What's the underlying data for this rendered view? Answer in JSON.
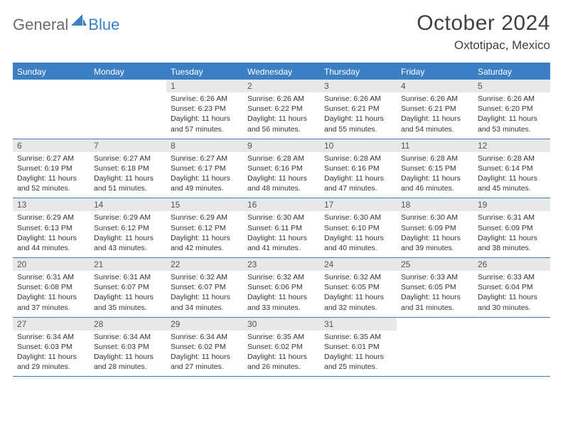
{
  "logo": {
    "general": "General",
    "blue": "Blue"
  },
  "title": {
    "month": "October 2024",
    "location": "Oxtotipac, Mexico"
  },
  "colors": {
    "primary": "#3b7fc4",
    "header_bg": "#3b7fc4",
    "num_bg": "#e8e8e8",
    "text": "#333333"
  },
  "day_names": [
    "Sunday",
    "Monday",
    "Tuesday",
    "Wednesday",
    "Thursday",
    "Friday",
    "Saturday"
  ],
  "weeks": [
    [
      {
        "empty": true
      },
      {
        "empty": true
      },
      {
        "n": "1",
        "sr": "6:26 AM",
        "ss": "6:23 PM",
        "dl": "11 hours and 57 minutes."
      },
      {
        "n": "2",
        "sr": "6:26 AM",
        "ss": "6:22 PM",
        "dl": "11 hours and 56 minutes."
      },
      {
        "n": "3",
        "sr": "6:26 AM",
        "ss": "6:21 PM",
        "dl": "11 hours and 55 minutes."
      },
      {
        "n": "4",
        "sr": "6:26 AM",
        "ss": "6:21 PM",
        "dl": "11 hours and 54 minutes."
      },
      {
        "n": "5",
        "sr": "6:26 AM",
        "ss": "6:20 PM",
        "dl": "11 hours and 53 minutes."
      }
    ],
    [
      {
        "n": "6",
        "sr": "6:27 AM",
        "ss": "6:19 PM",
        "dl": "11 hours and 52 minutes."
      },
      {
        "n": "7",
        "sr": "6:27 AM",
        "ss": "6:18 PM",
        "dl": "11 hours and 51 minutes."
      },
      {
        "n": "8",
        "sr": "6:27 AM",
        "ss": "6:17 PM",
        "dl": "11 hours and 49 minutes."
      },
      {
        "n": "9",
        "sr": "6:28 AM",
        "ss": "6:16 PM",
        "dl": "11 hours and 48 minutes."
      },
      {
        "n": "10",
        "sr": "6:28 AM",
        "ss": "6:16 PM",
        "dl": "11 hours and 47 minutes."
      },
      {
        "n": "11",
        "sr": "6:28 AM",
        "ss": "6:15 PM",
        "dl": "11 hours and 46 minutes."
      },
      {
        "n": "12",
        "sr": "6:28 AM",
        "ss": "6:14 PM",
        "dl": "11 hours and 45 minutes."
      }
    ],
    [
      {
        "n": "13",
        "sr": "6:29 AM",
        "ss": "6:13 PM",
        "dl": "11 hours and 44 minutes."
      },
      {
        "n": "14",
        "sr": "6:29 AM",
        "ss": "6:12 PM",
        "dl": "11 hours and 43 minutes."
      },
      {
        "n": "15",
        "sr": "6:29 AM",
        "ss": "6:12 PM",
        "dl": "11 hours and 42 minutes."
      },
      {
        "n": "16",
        "sr": "6:30 AM",
        "ss": "6:11 PM",
        "dl": "11 hours and 41 minutes."
      },
      {
        "n": "17",
        "sr": "6:30 AM",
        "ss": "6:10 PM",
        "dl": "11 hours and 40 minutes."
      },
      {
        "n": "18",
        "sr": "6:30 AM",
        "ss": "6:09 PM",
        "dl": "11 hours and 39 minutes."
      },
      {
        "n": "19",
        "sr": "6:31 AM",
        "ss": "6:09 PM",
        "dl": "11 hours and 38 minutes."
      }
    ],
    [
      {
        "n": "20",
        "sr": "6:31 AM",
        "ss": "6:08 PM",
        "dl": "11 hours and 37 minutes."
      },
      {
        "n": "21",
        "sr": "6:31 AM",
        "ss": "6:07 PM",
        "dl": "11 hours and 35 minutes."
      },
      {
        "n": "22",
        "sr": "6:32 AM",
        "ss": "6:07 PM",
        "dl": "11 hours and 34 minutes."
      },
      {
        "n": "23",
        "sr": "6:32 AM",
        "ss": "6:06 PM",
        "dl": "11 hours and 33 minutes."
      },
      {
        "n": "24",
        "sr": "6:32 AM",
        "ss": "6:05 PM",
        "dl": "11 hours and 32 minutes."
      },
      {
        "n": "25",
        "sr": "6:33 AM",
        "ss": "6:05 PM",
        "dl": "11 hours and 31 minutes."
      },
      {
        "n": "26",
        "sr": "6:33 AM",
        "ss": "6:04 PM",
        "dl": "11 hours and 30 minutes."
      }
    ],
    [
      {
        "n": "27",
        "sr": "6:34 AM",
        "ss": "6:03 PM",
        "dl": "11 hours and 29 minutes."
      },
      {
        "n": "28",
        "sr": "6:34 AM",
        "ss": "6:03 PM",
        "dl": "11 hours and 28 minutes."
      },
      {
        "n": "29",
        "sr": "6:34 AM",
        "ss": "6:02 PM",
        "dl": "11 hours and 27 minutes."
      },
      {
        "n": "30",
        "sr": "6:35 AM",
        "ss": "6:02 PM",
        "dl": "11 hours and 26 minutes."
      },
      {
        "n": "31",
        "sr": "6:35 AM",
        "ss": "6:01 PM",
        "dl": "11 hours and 25 minutes."
      },
      {
        "empty": true
      },
      {
        "empty": true
      }
    ]
  ],
  "labels": {
    "sunrise": "Sunrise:",
    "sunset": "Sunset:",
    "daylight": "Daylight:"
  }
}
